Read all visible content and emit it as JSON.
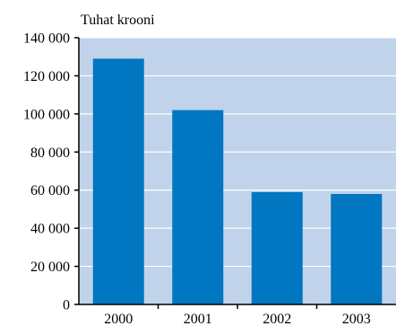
{
  "chart_data": {
    "type": "bar",
    "ylabel": "Tuhat krooni",
    "categories": [
      "2000",
      "2001",
      "2002",
      "2003"
    ],
    "values": [
      129000,
      102000,
      59000,
      58000
    ],
    "ylim": [
      0,
      140000
    ],
    "yticks": [
      0,
      20000,
      40000,
      60000,
      80000,
      100000,
      120000,
      140000
    ],
    "ytick_labels": [
      "0",
      "20 000",
      "40 000",
      "60 000",
      "80 000",
      "100 000",
      "120 000",
      "140 000"
    ],
    "grid": true,
    "legend": "none"
  },
  "colors": {
    "plot_background": "#c0d3ea",
    "bar": "#0077c0",
    "gridline": "#ffffff",
    "axis": "#000000"
  }
}
